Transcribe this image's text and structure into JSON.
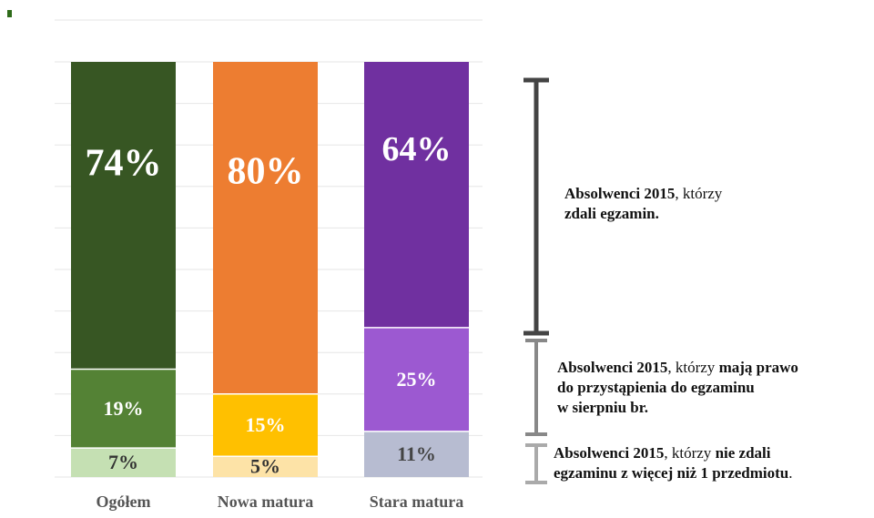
{
  "colors": {
    "accent_mark": "#2e6b1a",
    "grid": "#e6e6e6",
    "bracket_dark": "#444444",
    "bracket_mid": "#888888",
    "bracket_light": "#aaaaaa"
  },
  "chart_data": {
    "type": "bar",
    "stacked": true,
    "categories": [
      "Ogółem",
      "Nowa matura",
      "Stara matura"
    ],
    "ylim": [
      0,
      100
    ],
    "grid": true,
    "series": [
      {
        "key": "failed",
        "values": [
          7,
          5,
          11
        ],
        "labels": [
          "7%",
          "5%",
          "11%"
        ],
        "colors": [
          "#c5e0b3",
          "#fde3a7",
          "#b7bcd1"
        ],
        "text_colors": [
          "#333333",
          "#333333",
          "#444444"
        ]
      },
      {
        "key": "retake",
        "values": [
          19,
          15,
          25
        ],
        "labels": [
          "19%",
          "15%",
          "25%"
        ],
        "colors": [
          "#548235",
          "#ffc000",
          "#9c59d1"
        ],
        "text_colors": [
          "#ffffff",
          "#ffffff",
          "#ffffff"
        ]
      },
      {
        "key": "passed",
        "values": [
          74,
          80,
          64
        ],
        "labels": [
          "74%",
          "80%",
          "64%"
        ],
        "colors": [
          "#375623",
          "#ed7d31",
          "#7030a0"
        ],
        "text_colors": [
          "#ffffff",
          "#ffffff",
          "#ffffff"
        ]
      }
    ]
  },
  "annotations": {
    "passed": {
      "bold1": "Absolwenci 2015",
      "normal1": ", którzy",
      "bold2": "zdali egzamin."
    },
    "retake": {
      "bold1": "Absolwenci 2015",
      "normal1": ", którzy ",
      "bold2": "mają prawo",
      "bold3": "do przystąpienia do egzaminu",
      "bold4": "w sierpniu br."
    },
    "failed": {
      "bold1": "Absolwenci 2015",
      "normal1": ", którzy ",
      "bold2": "nie zdali",
      "bold3": "egzaminu z więcej niż 1 przedmiotu",
      "normal2": "."
    }
  }
}
